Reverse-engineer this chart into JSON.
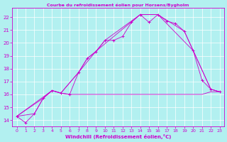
{
  "title": "Courbe du refroidissement éolien pour Horsens/Bygholm",
  "xlabel": "Windchill (Refroidissement éolien,°C)",
  "bg_color": "#b2f0f0",
  "line_color": "#cc00cc",
  "xlim": [
    -0.5,
    23.5
  ],
  "ylim": [
    13.5,
    22.7
  ],
  "xticks": [
    0,
    1,
    2,
    3,
    4,
    5,
    6,
    7,
    8,
    9,
    10,
    11,
    12,
    13,
    14,
    15,
    16,
    17,
    18,
    19,
    20,
    21,
    22,
    23
  ],
  "yticks": [
    14,
    15,
    16,
    17,
    18,
    19,
    20,
    21,
    22
  ],
  "grid_color": "#ffffff",
  "series": [
    {
      "x": [
        0,
        1,
        2,
        3,
        4,
        5,
        6,
        7,
        8,
        9,
        10,
        11,
        12,
        13,
        14,
        15,
        16,
        17,
        18,
        19,
        20,
        21,
        22,
        23
      ],
      "y": [
        14.3,
        13.8,
        14.5,
        15.7,
        16.3,
        16.1,
        16.0,
        17.7,
        18.8,
        19.3,
        20.2,
        20.2,
        20.5,
        21.6,
        22.2,
        21.6,
        22.2,
        21.7,
        21.5,
        20.9,
        19.4,
        17.1,
        16.4,
        16.2
      ],
      "marker": true
    },
    {
      "x": [
        0,
        3,
        4,
        5,
        7,
        10,
        14,
        16,
        19,
        20,
        22,
        23
      ],
      "y": [
        14.3,
        15.7,
        16.3,
        16.1,
        17.7,
        20.2,
        22.2,
        22.2,
        20.9,
        19.4,
        16.4,
        16.2
      ],
      "marker": false
    },
    {
      "x": [
        0,
        4,
        5,
        7,
        8,
        14,
        16,
        20,
        22,
        23
      ],
      "y": [
        14.3,
        16.3,
        16.1,
        17.7,
        18.8,
        22.2,
        22.2,
        19.4,
        16.4,
        16.2
      ],
      "marker": false
    },
    {
      "x": [
        0,
        2,
        3,
        4,
        5,
        6,
        7,
        8,
        9,
        10,
        11,
        12,
        13,
        14,
        15,
        16,
        17,
        18,
        19,
        20,
        21,
        22,
        23
      ],
      "y": [
        14.3,
        14.5,
        15.7,
        16.3,
        16.1,
        16.0,
        16.0,
        16.0,
        16.0,
        16.0,
        16.0,
        16.0,
        16.0,
        16.0,
        16.0,
        16.0,
        16.0,
        16.0,
        16.0,
        16.0,
        16.0,
        16.2,
        16.2
      ],
      "marker": false
    }
  ]
}
